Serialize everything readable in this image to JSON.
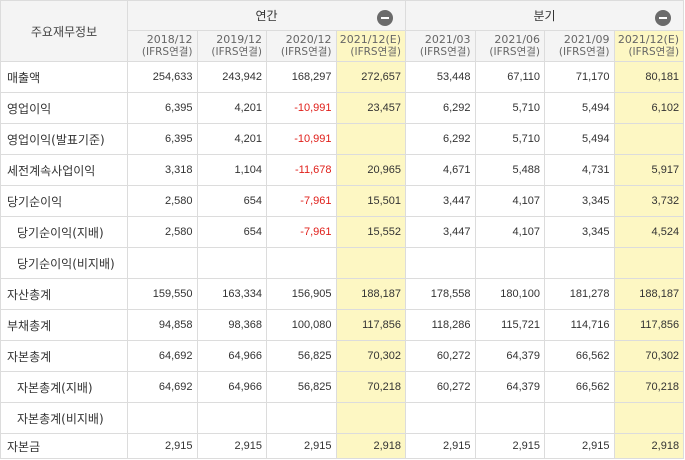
{
  "header": {
    "label": "주요재무정보",
    "annual_label": "연간",
    "quarterly_label": "분기"
  },
  "columns": [
    {
      "period": "2018/12",
      "basis": "(IFRS연결)",
      "estimate": false
    },
    {
      "period": "2019/12",
      "basis": "(IFRS연결)",
      "estimate": false
    },
    {
      "period": "2020/12",
      "basis": "(IFRS연결)",
      "estimate": false
    },
    {
      "period": "2021/12(E)",
      "basis": "(IFRS연결)",
      "estimate": true
    },
    {
      "period": "2021/03",
      "basis": "(IFRS연결)",
      "estimate": false
    },
    {
      "period": "2021/06",
      "basis": "(IFRS연결)",
      "estimate": false
    },
    {
      "period": "2021/09",
      "basis": "(IFRS연결)",
      "estimate": false
    },
    {
      "period": "2021/12(E)",
      "basis": "(IFRS연결)",
      "estimate": true
    }
  ],
  "rows": [
    {
      "label": "매출액",
      "values": [
        "254,633",
        "243,942",
        "168,297",
        "272,657",
        "53,448",
        "67,110",
        "71,170",
        "80,181"
      ]
    },
    {
      "label": "영업이익",
      "values": [
        "6,395",
        "4,201",
        "-10,991",
        "23,457",
        "6,292",
        "5,710",
        "5,494",
        "6,102"
      ]
    },
    {
      "label": "영업이익(발표기준)",
      "values": [
        "6,395",
        "4,201",
        "-10,991",
        "",
        "6,292",
        "5,710",
        "5,494",
        ""
      ]
    },
    {
      "label": "세전계속사업이익",
      "values": [
        "3,318",
        "1,104",
        "-11,678",
        "20,965",
        "4,671",
        "5,488",
        "4,731",
        "5,917"
      ]
    },
    {
      "label": "당기순이익",
      "values": [
        "2,580",
        "654",
        "-7,961",
        "15,501",
        "3,447",
        "4,107",
        "3,345",
        "3,732"
      ]
    },
    {
      "label": "당기순이익(지배)",
      "values": [
        "2,580",
        "654",
        "-7,961",
        "15,552",
        "3,447",
        "4,107",
        "3,345",
        "4,524"
      ]
    },
    {
      "label": "당기순이익(비지배)",
      "values": [
        "",
        "",
        "",
        "",
        "",
        "",
        "",
        ""
      ]
    },
    {
      "label": "자산총계",
      "values": [
        "159,550",
        "163,334",
        "156,905",
        "188,187",
        "178,558",
        "180,100",
        "181,278",
        "188,187"
      ]
    },
    {
      "label": "부채총계",
      "values": [
        "94,858",
        "98,368",
        "100,080",
        "117,856",
        "118,286",
        "115,721",
        "114,716",
        "117,856"
      ]
    },
    {
      "label": "자본총계",
      "values": [
        "64,692",
        "64,966",
        "56,825",
        "70,302",
        "60,272",
        "64,379",
        "66,562",
        "70,302"
      ]
    },
    {
      "label": "자본총계(지배)",
      "values": [
        "64,692",
        "64,966",
        "56,825",
        "70,218",
        "60,272",
        "64,379",
        "66,562",
        "70,218"
      ]
    },
    {
      "label": "자본총계(비지배)",
      "values": [
        "",
        "",
        "",
        "",
        "",
        "",
        "",
        ""
      ]
    },
    {
      "label": "자본금",
      "values": [
        "2,915",
        "2,915",
        "2,915",
        "2,918",
        "2,915",
        "2,915",
        "2,915",
        "2,918"
      ]
    }
  ]
}
